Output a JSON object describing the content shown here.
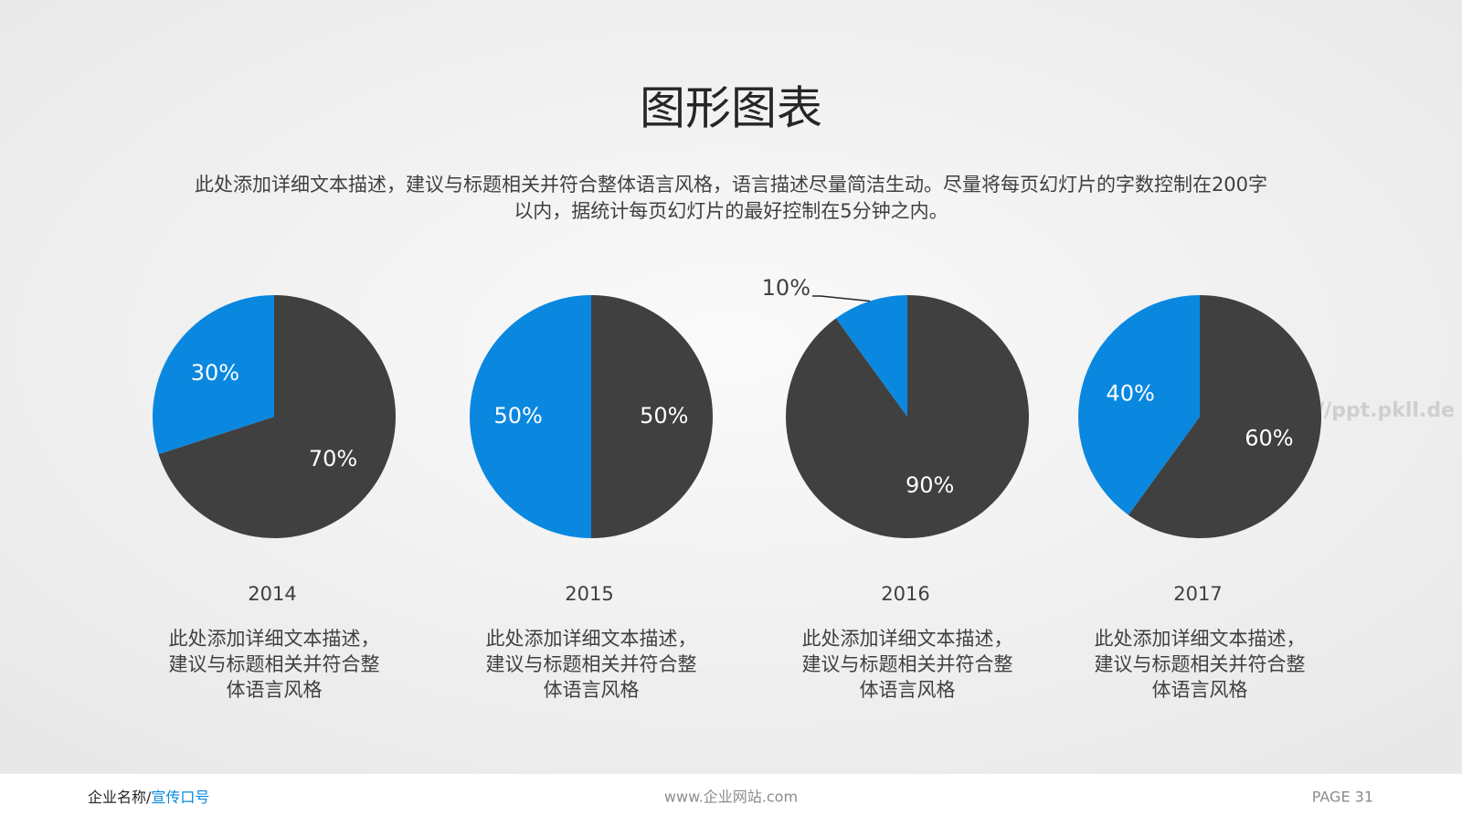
{
  "title": "图形图表",
  "description": [
    "此处添加详细文本描述，建议与标题相关并符合整体语言风格，语言描述尽量简洁生动。尽量将每页幻灯片的字数控制在200字",
    "以内，据统计每页幻灯片的最好控制在5分钟之内。"
  ],
  "watermark": "//ppt.pkll.de",
  "chart_data": [
    {
      "type": "pie",
      "title": "2014",
      "values": [
        70,
        30
      ],
      "value_labels": [
        "70%",
        "30%"
      ],
      "colors": [
        "#404040",
        "#0a88e0"
      ],
      "caption": [
        "此处添加详细文本描述，",
        "建议与标题相关并符合整",
        "体语言风格"
      ]
    },
    {
      "type": "pie",
      "title": "2015",
      "values": [
        50,
        50
      ],
      "value_labels": [
        "50%",
        "50%"
      ],
      "colors": [
        "#404040",
        "#0a88e0"
      ],
      "caption": [
        "此处添加详细文本描述，",
        "建议与标题相关并符合整",
        "体语言风格"
      ]
    },
    {
      "type": "pie",
      "title": "2016",
      "values": [
        90,
        10
      ],
      "value_labels": [
        "90%",
        "10%"
      ],
      "colors": [
        "#404040",
        "#0a88e0"
      ],
      "caption": [
        "此处添加详细文本描述，",
        "建议与标题相关并符合整",
        "体语言风格"
      ]
    },
    {
      "type": "pie",
      "title": "2017",
      "values": [
        60,
        40
      ],
      "value_labels": [
        "60%",
        "40%"
      ],
      "colors": [
        "#404040",
        "#0a88e0"
      ],
      "caption": [
        "此处添加详细文本描述，",
        "建议与标题相关并符合整",
        "体语言风格"
      ]
    }
  ],
  "footer": {
    "company": "企业名称/",
    "slogan": "宣传口号",
    "website": "www.企业网站.com",
    "page": "PAGE 31"
  }
}
